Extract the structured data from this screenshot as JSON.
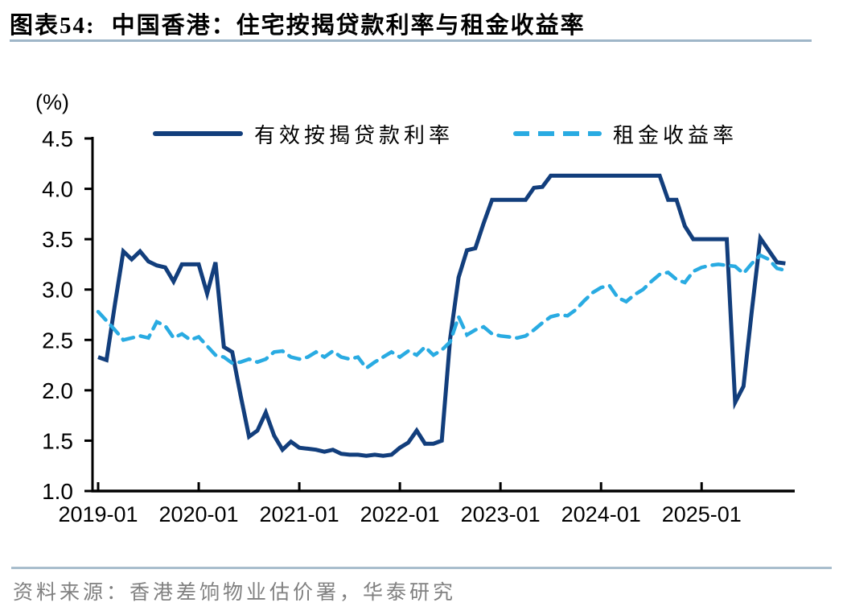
{
  "header": {
    "prefix": "图表54:",
    "title": "中国香港：住宅按揭贷款利率与租金收益率"
  },
  "chart_data": {
    "type": "line",
    "title": "中国香港：住宅按揭贷款利率与租金收益率",
    "unit_label": "(%)",
    "unit": "%",
    "x_start": "2019-01",
    "x_frequency": "monthly",
    "x_tick_labels": [
      "2019-01",
      "2020-01",
      "2021-01",
      "2022-01",
      "2023-01",
      "2024-01",
      "2025-01"
    ],
    "x_tick_indices": [
      0,
      12,
      24,
      36,
      48,
      60,
      72
    ],
    "y_tick_labels": [
      "4.5",
      "4.0",
      "3.5",
      "3.0",
      "2.5",
      "2.0",
      "1.5",
      "1.0"
    ],
    "y_tick_values": [
      4.5,
      4.0,
      3.5,
      3.0,
      2.5,
      2.0,
      1.5,
      1.0
    ],
    "ylim": [
      1.0,
      4.5
    ],
    "grid": false,
    "legend_position": "top",
    "series": [
      {
        "name": "有效按揭贷款利率",
        "key": "mortgage-rate",
        "color": "#123e7c",
        "line_style": "solid",
        "values": [
          2.33,
          2.3,
          2.85,
          3.38,
          3.3,
          3.38,
          3.28,
          3.24,
          3.22,
          3.08,
          3.25,
          3.25,
          3.25,
          2.96,
          3.27,
          2.43,
          2.38,
          1.95,
          1.54,
          1.6,
          1.78,
          1.55,
          1.41,
          1.49,
          1.43,
          1.42,
          1.41,
          1.39,
          1.41,
          1.37,
          1.36,
          1.36,
          1.35,
          1.36,
          1.35,
          1.36,
          1.43,
          1.48,
          1.6,
          1.47,
          1.47,
          1.5,
          2.51,
          3.12,
          3.39,
          3.41,
          3.66,
          3.89,
          3.89,
          3.89,
          3.89,
          3.89,
          4.01,
          4.02,
          4.13,
          4.13,
          4.13,
          4.13,
          4.13,
          4.13,
          4.13,
          4.13,
          4.13,
          4.13,
          4.13,
          4.13,
          4.13,
          4.13,
          3.89,
          3.89,
          3.63,
          3.5,
          3.5,
          3.5,
          3.5,
          3.5,
          1.88,
          2.04,
          2.8,
          3.51,
          3.39,
          3.27,
          3.26
        ]
      },
      {
        "name": "租金收益率",
        "key": "rental-yield",
        "color": "#29abe2",
        "line_style": "dashed",
        "values": [
          2.78,
          2.69,
          2.6,
          2.5,
          2.52,
          2.54,
          2.52,
          2.68,
          2.64,
          2.52,
          2.56,
          2.5,
          2.53,
          2.44,
          2.35,
          2.33,
          2.27,
          2.28,
          2.31,
          2.28,
          2.31,
          2.38,
          2.39,
          2.33,
          2.31,
          2.33,
          2.38,
          2.33,
          2.39,
          2.33,
          2.31,
          2.33,
          2.22,
          2.28,
          2.33,
          2.38,
          2.33,
          2.39,
          2.35,
          2.43,
          2.35,
          2.4,
          2.48,
          2.73,
          2.55,
          2.6,
          2.63,
          2.56,
          2.54,
          2.53,
          2.52,
          2.54,
          2.6,
          2.67,
          2.73,
          2.75,
          2.74,
          2.8,
          2.89,
          2.97,
          3.02,
          3.04,
          2.92,
          2.88,
          2.95,
          3.0,
          3.08,
          3.15,
          3.17,
          3.1,
          3.07,
          3.18,
          3.22,
          3.24,
          3.25,
          3.24,
          3.23,
          3.16,
          3.26,
          3.34,
          3.3,
          3.21,
          3.19
        ]
      }
    ]
  },
  "footer": {
    "source": "资料来源：香港差饷物业估价署，华泰研究"
  },
  "colors": {
    "mortgage_line": "#123e7c",
    "rental_line": "#29abe2",
    "title_rule": "#9fb6c8",
    "source_rule": "#a9becd",
    "source_text": "#808080",
    "axis": "#000000"
  }
}
